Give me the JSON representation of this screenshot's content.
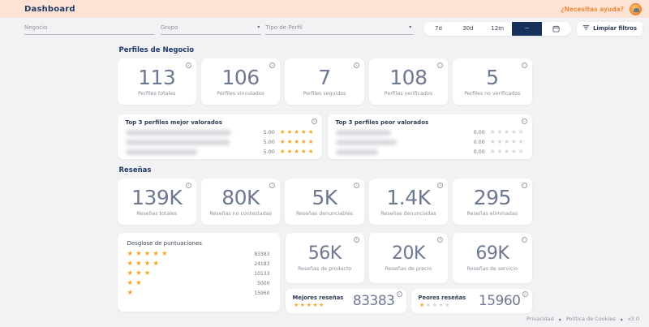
{
  "header": {
    "title": "Dashboard",
    "help_label": "¿Necesitas ayuda?"
  },
  "filters": {
    "negocio_label": "Negocio",
    "grupo_label": "Grupo",
    "tipo_perfil_label": "Tipo de Perfil",
    "range_options": [
      {
        "label": "7d",
        "selected": false
      },
      {
        "label": "30d",
        "selected": false
      },
      {
        "label": "12m",
        "selected": false
      },
      {
        "label": "--",
        "selected": true
      }
    ],
    "clear_label": "Limpiar filtros"
  },
  "perfiles": {
    "title": "Perfiles de Negocio",
    "stats": [
      {
        "value": "113",
        "label": "Perfiles totales"
      },
      {
        "value": "106",
        "label": "Perfiles vinculados"
      },
      {
        "value": "7",
        "label": "Perfiles seguidos"
      },
      {
        "value": "108",
        "label": "Perfiles verificados"
      },
      {
        "value": "5",
        "label": "Perfiles no verificados"
      }
    ],
    "top_best": {
      "title": "Top 3 perfiles mejor valorados",
      "rows": [
        {
          "rating": "5.00",
          "stars": 5
        },
        {
          "rating": "5.00",
          "stars": 5
        },
        {
          "rating": "5.00",
          "stars": 5
        }
      ]
    },
    "top_worst": {
      "title": "Top 3 perfiles peor valorados",
      "rows": [
        {
          "rating": "0.00",
          "stars": 0
        },
        {
          "rating": "0.00",
          "stars": 0
        },
        {
          "rating": "0.00",
          "stars": 0
        }
      ]
    }
  },
  "resenas": {
    "title": "Reseñas",
    "stats": [
      {
        "value": "139K",
        "label": "Reseñas totales"
      },
      {
        "value": "80K",
        "label": "Reseñas no contestadas"
      },
      {
        "value": "5K",
        "label": "Reseñas denunciables"
      },
      {
        "value": "1.4K",
        "label": "Reseñas denunciadas"
      },
      {
        "value": "295",
        "label": "Reseñas eliminadas"
      }
    ],
    "breakdown": {
      "title": "Desglose de puntuaciones",
      "rows": [
        {
          "stars": 5,
          "value": "83383"
        },
        {
          "stars": 4,
          "value": "24183"
        },
        {
          "stars": 3,
          "value": "10133"
        },
        {
          "stars": 2,
          "value": "5000"
        },
        {
          "stars": 1,
          "value": "15960"
        }
      ]
    },
    "categories": [
      {
        "value": "56K",
        "label": "Reseñas de producto"
      },
      {
        "value": "20K",
        "label": "Reseñas de precio"
      },
      {
        "value": "69K",
        "label": "Reseñas de servicio"
      }
    ],
    "best": {
      "label": "Mejores reseñas",
      "stars": 5,
      "value": "83383"
    },
    "worst": {
      "label": "Peores reseñas",
      "stars": 1,
      "value": "15960"
    }
  },
  "footer": {
    "privacy": "Privacidad",
    "cookies": "Política de Cookies",
    "version": "v3.0"
  },
  "icons": {
    "caret": "▾",
    "star": "★",
    "footer_separator": "◆"
  },
  "colors": {
    "header_bg": "#fce3d6",
    "accent_orange": "#ef8c3c",
    "navy": "#16305c",
    "star_orange": "#f6a623",
    "number_slate": "#6d7891",
    "page_bg": "#f2f2f4"
  }
}
